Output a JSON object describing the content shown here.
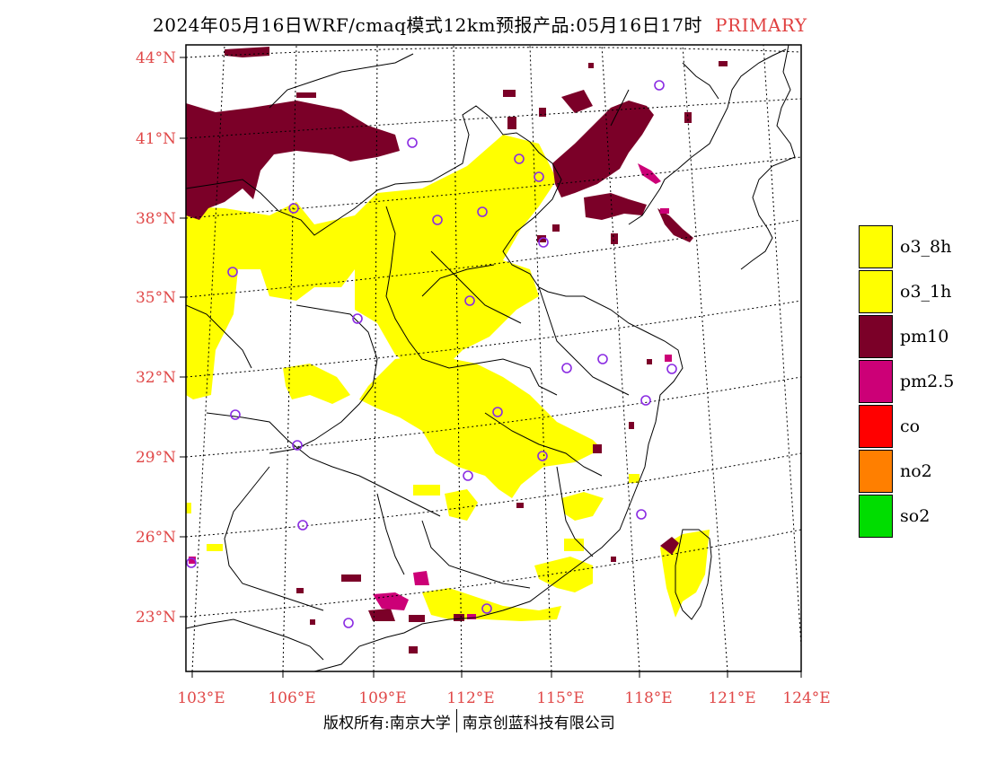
{
  "title": {
    "main": "2024年05月16日WRF/cmaq模式12km预报产品:05月16日17时",
    "tag": "PRIMARY"
  },
  "axes": {
    "lat_labels": [
      "44°N",
      "41°N",
      "38°N",
      "35°N",
      "32°N",
      "29°N",
      "26°N",
      "23°N"
    ],
    "lon_labels": [
      "103°E",
      "106°E",
      "109°E",
      "112°E",
      "115°E",
      "118°E",
      "121°E",
      "124°E"
    ]
  },
  "legend": {
    "items": [
      {
        "label": "o3_8h",
        "color": "#ffff00"
      },
      {
        "label": "o3_1h",
        "color": "#ffff00"
      },
      {
        "label": "pm10",
        "color": "#7b0028"
      },
      {
        "label": "pm2.5",
        "color": "#cc0077"
      },
      {
        "label": "co",
        "color": "#ff0000"
      },
      {
        "label": "no2",
        "color": "#ff7f00"
      },
      {
        "label": "so2",
        "color": "#00dd00"
      }
    ]
  },
  "footer": {
    "left": "版权所有:南京大学",
    "right": "南京创蓝科技有限公司"
  },
  "colors": {
    "o3": "#ffff00",
    "pm10": "#7b0028",
    "pm25": "#cc0077",
    "station": "#8a2be2",
    "axis_label": "#e04848"
  }
}
